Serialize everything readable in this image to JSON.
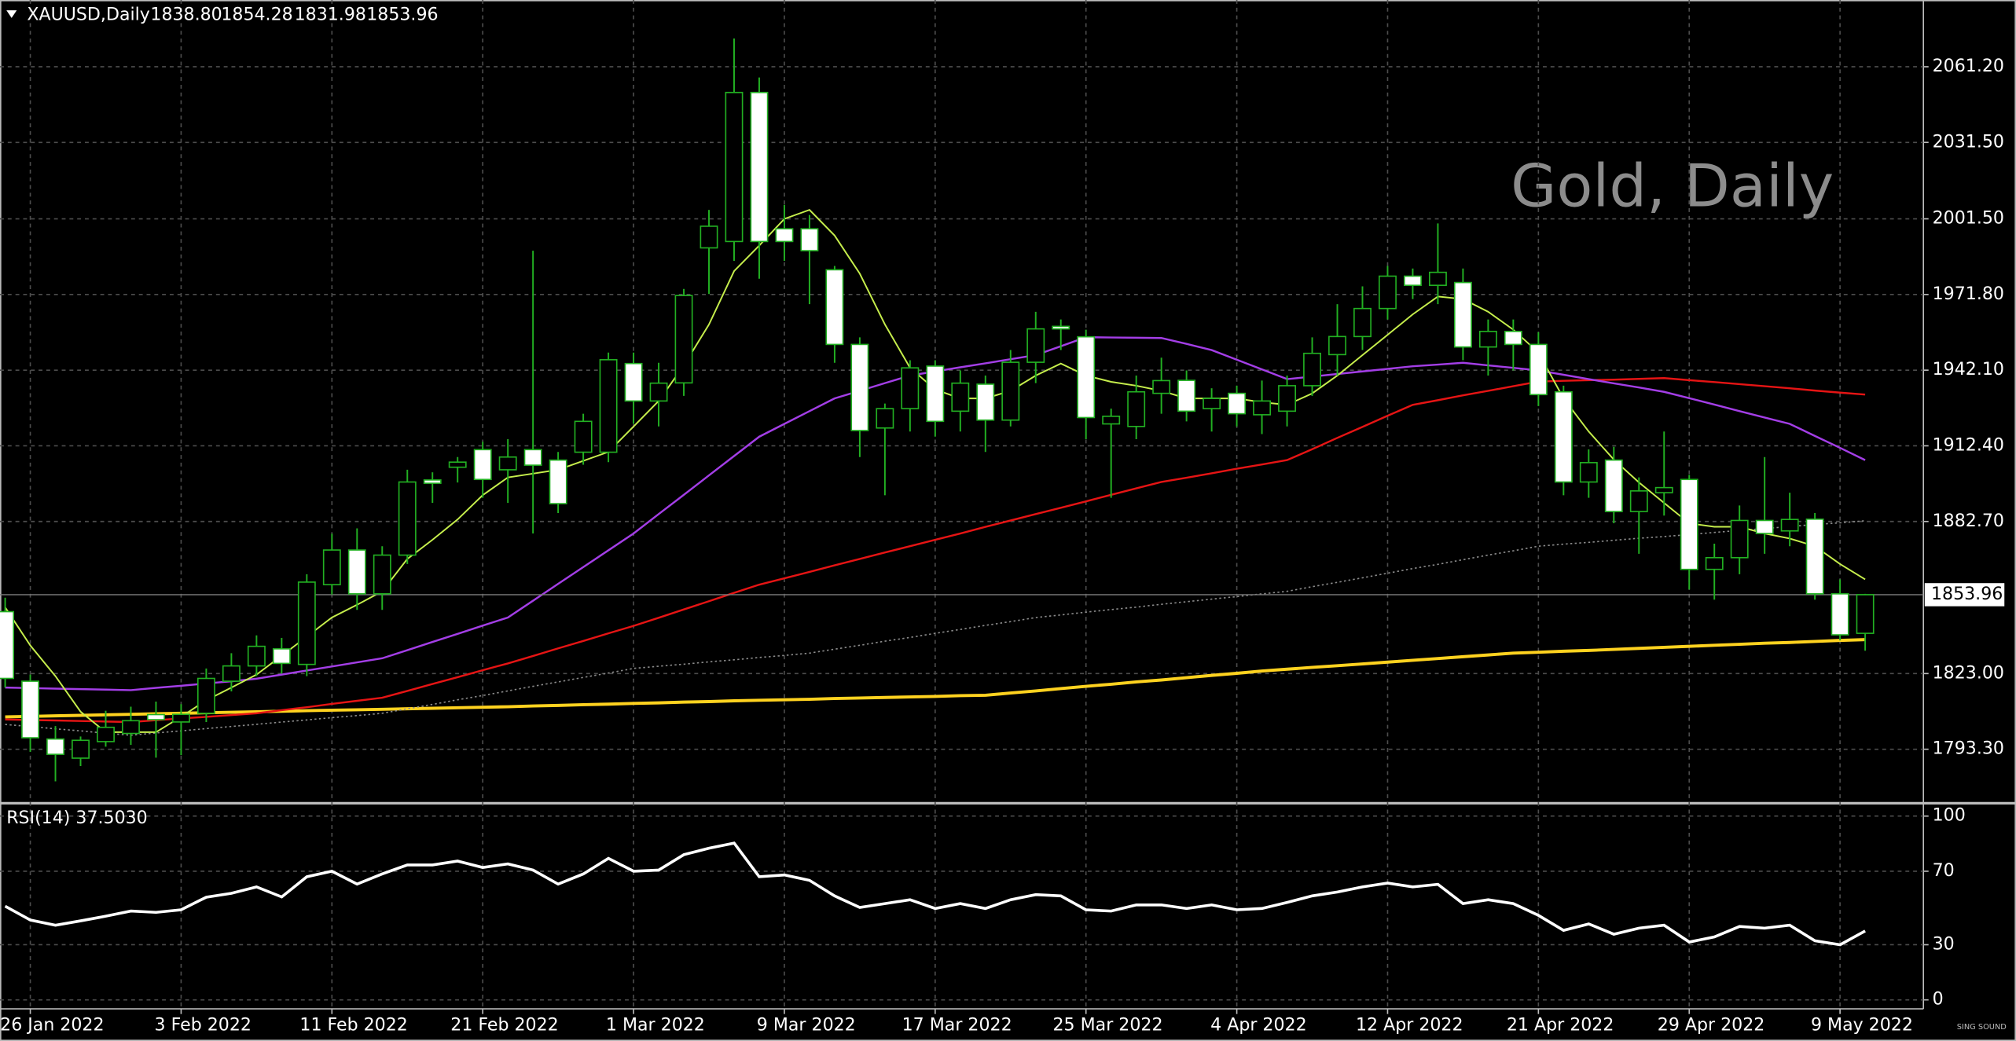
{
  "chart_data": [
    {
      "type": "candlestick",
      "title": "XAUUSD,Daily",
      "ohlc_label": [
        "1838.80",
        "1854.28",
        "1831.98",
        "1853.96"
      ],
      "watermark": "Gold, Daily",
      "logo": "SING SOUND",
      "categories": [
        null,
        "26 Jan 2022",
        null,
        null,
        null,
        null,
        null,
        "3 Feb 2022",
        null,
        null,
        null,
        null,
        null,
        "11 Feb 2022",
        null,
        null,
        null,
        null,
        null,
        "21 Feb 2022",
        null,
        null,
        null,
        null,
        null,
        "1 Mar 2022",
        null,
        null,
        null,
        null,
        null,
        "9 Mar 2022",
        null,
        null,
        null,
        null,
        null,
        "17 Mar 2022",
        null,
        null,
        null,
        null,
        null,
        "25 Mar 2022",
        null,
        null,
        null,
        null,
        null,
        "4 Apr 2022",
        null,
        null,
        null,
        null,
        null,
        "12 Apr 2022",
        null,
        null,
        null,
        null,
        null,
        "21 Apr 2022",
        null,
        null,
        null,
        null,
        null,
        "29 Apr 2022",
        null,
        null,
        null,
        null,
        null,
        "9 May 2022",
        null
      ],
      "open": [
        1847.3,
        1820,
        1797.3,
        1789.8,
        1796.3,
        1799.5,
        1806.9,
        1804,
        1807.4,
        1820,
        1826,
        1832.7,
        1826.6,
        1857.9,
        1871.5,
        1854.3,
        1869.5,
        1899,
        1904,
        1910.9,
        1903,
        1910.9,
        1906.8,
        1909.9,
        1909.9,
        1944.7,
        1930,
        1937.1,
        1990.1,
        1992.6,
        2051.1,
        1997.6,
        1997.6,
        1981.5,
        1952.2,
        1919.4,
        1927,
        1943.7,
        1926,
        1936.6,
        1922.5,
        1945.2,
        1959.3,
        1955.2,
        1921,
        1920,
        1933,
        1938.1,
        1927,
        1933,
        1924.6,
        1926,
        1936,
        1948.2,
        1955.3,
        1966.3,
        1979,
        1975.4,
        1976.5,
        1951.2,
        1957.3,
        1952.2,
        1933.6,
        1898.2,
        1906.8,
        1886.6,
        1894,
        1899.2,
        1863.9,
        1868.5,
        1883.1,
        1879,
        1883.6,
        1854.3,
        1838.8
      ],
      "high": [
        1852.8,
        1822.6,
        1802.4,
        1798.3,
        1808.4,
        1810,
        1812,
        1811,
        1825,
        1831,
        1838,
        1837,
        1862,
        1877.9,
        1880,
        1873,
        1903,
        1902,
        1908,
        1914,
        1915,
        1989,
        1910,
        1925,
        1949,
        1949,
        1945,
        1974,
        2005,
        2072.3,
        2057,
        2007,
        2003,
        1983,
        1955,
        1929,
        1946,
        1946,
        1942,
        1940,
        1950,
        1965,
        1962,
        1958,
        1927,
        1940,
        1947,
        1942,
        1935,
        1936,
        1938,
        1940,
        1955,
        1968,
        1975,
        1983,
        1982,
        1999.7,
        1982,
        1962,
        1962,
        1957,
        1936,
        1911,
        1912,
        1900,
        1918,
        1901,
        1874,
        1889,
        1908,
        1894,
        1886,
        1860,
        1854.28
      ],
      "low": [
        1817.5,
        1792.3,
        1780.7,
        1786.7,
        1794.3,
        1795,
        1790,
        1791,
        1804,
        1816,
        1822,
        1823,
        1822,
        1854,
        1848,
        1848,
        1866,
        1890,
        1898,
        1892,
        1890,
        1878,
        1886,
        1905,
        1906,
        1921,
        1920,
        1932,
        1972,
        1985,
        1978,
        1985,
        1968,
        1945,
        1908,
        1893,
        1918,
        1916,
        1918,
        1910,
        1920,
        1937,
        1950,
        1915,
        1892,
        1915,
        1925,
        1922,
        1918,
        1920,
        1917,
        1920,
        1932,
        1940,
        1950,
        1962,
        1970,
        1968,
        1946,
        1940,
        1942,
        1928,
        1893,
        1892,
        1882,
        1870,
        1885,
        1856,
        1852,
        1862,
        1870,
        1873,
        1852,
        1836,
        1831.98
      ],
      "close": [
        1821.1,
        1797.8,
        1791.3,
        1796.8,
        1801.9,
        1804.5,
        1804.9,
        1807,
        1821.1,
        1826,
        1833.7,
        1827,
        1858.9,
        1871.5,
        1854.3,
        1869.5,
        1898.2,
        1897.7,
        1906,
        1899.2,
        1908,
        1904.8,
        1889.7,
        1922,
        1946.2,
        1930,
        1937,
        1971.4,
        1998.6,
        2051.1,
        1992.6,
        1992.6,
        1989,
        1952.2,
        1918.4,
        1927,
        1943,
        1922,
        1937,
        1922.5,
        1945.2,
        1958.3,
        1958.3,
        1923.5,
        1924,
        1933.6,
        1938,
        1926,
        1931,
        1925,
        1930,
        1936,
        1948.7,
        1955.3,
        1966.3,
        1979,
        1975.4,
        1980.5,
        1951.2,
        1957.3,
        1952.2,
        1932.5,
        1898.2,
        1905.8,
        1886.6,
        1894.7,
        1896,
        1863.9,
        1868.5,
        1883.1,
        1878,
        1883.5,
        1854.3,
        1838.2,
        1853.96
      ],
      "up_fill": "#000000",
      "down_fill": "#ffffff",
      "wick_color": "#22b022",
      "series": [
        {
          "color": "#ffd21f",
          "width": 2.4,
          "dotted": false,
          "values": [
            1806,
            1806.2,
            1806.4,
            1806.6,
            1806.8,
            1807,
            1807.2,
            1807.4,
            1807.6,
            1807.8,
            1808,
            1808.2,
            1808.4,
            1808.6,
            1808.8,
            1809,
            1809.2,
            1809.4,
            1809.6,
            1809.8,
            1810,
            1810.3,
            1810.5,
            1810.8,
            1811,
            1811.3,
            1811.5,
            1811.8,
            1812,
            1812.3,
            1812.5,
            1812.7,
            1812.9,
            1813.2,
            1813.4,
            1813.6,
            1813.8,
            1814.0,
            1814.3,
            1814.5,
            1815.4,
            1816.2,
            1817.1,
            1818,
            1818.8,
            1819.7,
            1820.5,
            1821.4,
            1822.3,
            1823.1,
            1824,
            1824.7,
            1825.4,
            1826.1,
            1826.8,
            1827.5,
            1828.2,
            1828.9,
            1829.6,
            1830.3,
            1831,
            1831.4,
            1831.8,
            1832.1,
            1832.5,
            1832.9,
            1833.3,
            1833.7,
            1834.1,
            1834.5,
            1834.9,
            1835.2,
            1835.6,
            1836,
            1836.3
          ]
        },
        {
          "color": "#8a8a8a",
          "width": 1,
          "dotted": true,
          "values": [
            1803,
            1802.2,
            1801.3,
            1800.5,
            1799.6,
            1798.8,
            1799.7,
            1800.5,
            1801.4,
            1802.2,
            1803.1,
            1804,
            1804.8,
            1805.7,
            1806.5,
            1807.4,
            1809.2,
            1810.9,
            1812.7,
            1814.4,
            1816.2,
            1818,
            1819.7,
            1821.5,
            1823.2,
            1825,
            1825.9,
            1826.7,
            1827.6,
            1828.4,
            1829.3,
            1830.1,
            1831,
            1832.6,
            1834.1,
            1835.7,
            1837.2,
            1838.8,
            1840.3,
            1841.9,
            1843.4,
            1845,
            1846,
            1847.1,
            1848.1,
            1849.1,
            1850.2,
            1851.2,
            1852.2,
            1853.2,
            1854.3,
            1855.3,
            1857.1,
            1858.8,
            1860.6,
            1862.4,
            1864.2,
            1865.9,
            1867.7,
            1869.5,
            1871.2,
            1873,
            1873.8,
            1874.5,
            1875.3,
            1876.1,
            1876.8,
            1877.6,
            1878.4,
            1879.2,
            1879.9,
            1880.7,
            1881.5,
            1882.2,
            1883
          ]
        },
        {
          "color": "#e51414",
          "width": 1.5,
          "dotted": false,
          "values": [
            1805,
            1804.8,
            1804.6,
            1804.4,
            1804.2,
            1804,
            1804.7,
            1805.4,
            1806,
            1806.7,
            1807.4,
            1808.6,
            1809.8,
            1811.1,
            1812.3,
            1813.5,
            1816.2,
            1818.9,
            1821.6,
            1824.3,
            1827,
            1829.9,
            1832.9,
            1835.8,
            1838.8,
            1841.7,
            1844.9,
            1848.2,
            1851.4,
            1854.7,
            1857.9,
            1860.4,
            1862.9,
            1865.5,
            1868,
            1870.5,
            1873,
            1875.5,
            1878,
            1880.6,
            1883.1,
            1885.6,
            1888.1,
            1890.6,
            1893.2,
            1895.7,
            1898.2,
            1899.9,
            1901.6,
            1903.4,
            1905.1,
            1906.8,
            1911.1,
            1915.5,
            1919.8,
            1924.2,
            1928.5,
            1930.3,
            1932.2,
            1934,
            1935.8,
            1937.6,
            1937.9,
            1938.2,
            1938.4,
            1938.7,
            1939,
            1938.2,
            1937.4,
            1936.6,
            1935.8,
            1935,
            1934.1,
            1933.3,
            1932.5
          ]
        },
        {
          "color": "#a33ee6",
          "width": 1.5,
          "dotted": false,
          "values": [
            1817.5,
            1817.3,
            1817.1,
            1816.9,
            1816.7,
            1816.5,
            1817.4,
            1818.2,
            1819.1,
            1820,
            1821,
            1822.6,
            1824.2,
            1825.8,
            1827.4,
            1829,
            1832.2,
            1835.4,
            1838.6,
            1841.8,
            1845,
            1851.6,
            1858.2,
            1864.8,
            1871.4,
            1878,
            1885.6,
            1893.2,
            1900.8,
            1908.4,
            1916,
            1921,
            1926,
            1931,
            1934,
            1937,
            1940,
            1941.6,
            1943.2,
            1944.8,
            1946.4,
            1948,
            1951.5,
            1955,
            1954.9,
            1954.8,
            1954.7,
            1952.4,
            1950,
            1946.2,
            1942.4,
            1938.6,
            1939.6,
            1940.6,
            1941.6,
            1942.6,
            1943.6,
            1944.3,
            1945,
            1944,
            1943,
            1942,
            1940.3,
            1938.6,
            1936.9,
            1935.3,
            1933.6,
            1931.1,
            1928.6,
            1926,
            1923.5,
            1921,
            1916.3,
            1911.6,
            1906.8
          ]
        },
        {
          "color": "#c6ee4c",
          "width": 1.2,
          "dotted": false,
          "values": [
            1849,
            1834,
            1822,
            1808,
            1800,
            1800,
            1800,
            1806,
            1812.5,
            1817.5,
            1822.6,
            1830,
            1837.5,
            1845,
            1850,
            1855.3,
            1868,
            1875.5,
            1883.5,
            1893,
            1900,
            1901.5,
            1903,
            1906.5,
            1910,
            1920,
            1930,
            1944,
            1960,
            1981,
            1991,
            2001.5,
            2005,
            1995,
            1980,
            1960,
            1943,
            1934.5,
            1931,
            1931,
            1934,
            1940,
            1944.7,
            1940,
            1937.5,
            1936,
            1934,
            1931,
            1931,
            1931,
            1929.5,
            1928.5,
            1933,
            1940,
            1948,
            1956,
            1964,
            1971,
            1970,
            1965,
            1958,
            1949,
            1931,
            1918,
            1907,
            1898,
            1890,
            1882,
            1880.6,
            1880.6,
            1878,
            1876,
            1873,
            1866,
            1860
          ]
        }
      ],
      "ylim": [
        1772.1,
        2087.4
      ],
      "yticks": [
        {
          "value": 1793.3,
          "label": "1793.30"
        },
        {
          "value": 1823,
          "label": "1823.00"
        },
        {
          "value": 1882.7,
          "label": "1882.70"
        },
        {
          "value": 1912.4,
          "label": "1912.40"
        },
        {
          "value": 1942.1,
          "label": "1942.10"
        },
        {
          "value": 1971.8,
          "label": "1971.80"
        },
        {
          "value": 2001.5,
          "label": "2001.50"
        },
        {
          "value": 2031.5,
          "label": "2031.50"
        },
        {
          "value": 2061.2,
          "label": "2061.20"
        }
      ],
      "grid": true
    },
    {
      "type": "line",
      "title": "RSI(14) 37.5030",
      "color": "#ffffff",
      "values": [
        51,
        43.4,
        40.6,
        43,
        45.5,
        48.3,
        47.6,
        49,
        55.9,
        58,
        61.5,
        56,
        67,
        70,
        63,
        68.5,
        73.4,
        73.4,
        75.5,
        72,
        74,
        70.6,
        63,
        68.5,
        77,
        70,
        70.6,
        79,
        82.5,
        85.3,
        67,
        68,
        65,
        56.6,
        50.3,
        52.4,
        54.5,
        49.7,
        52.4,
        49.7,
        54.5,
        57.3,
        56.6,
        49,
        48.3,
        51.7,
        51.7,
        49.7,
        51.7,
        49,
        49.7,
        53,
        56.6,
        58.7,
        61.5,
        63.6,
        61.5,
        62.9,
        52.4,
        54.5,
        52.4,
        46,
        37.8,
        41.3,
        35.7,
        39,
        40.6,
        31.5,
        34.3,
        39.9,
        39,
        40.6,
        32.2,
        30,
        37.503
      ],
      "ylim": [
        0,
        100
      ],
      "yticks": [
        0,
        30,
        70,
        100
      ],
      "grid": true
    }
  ]
}
